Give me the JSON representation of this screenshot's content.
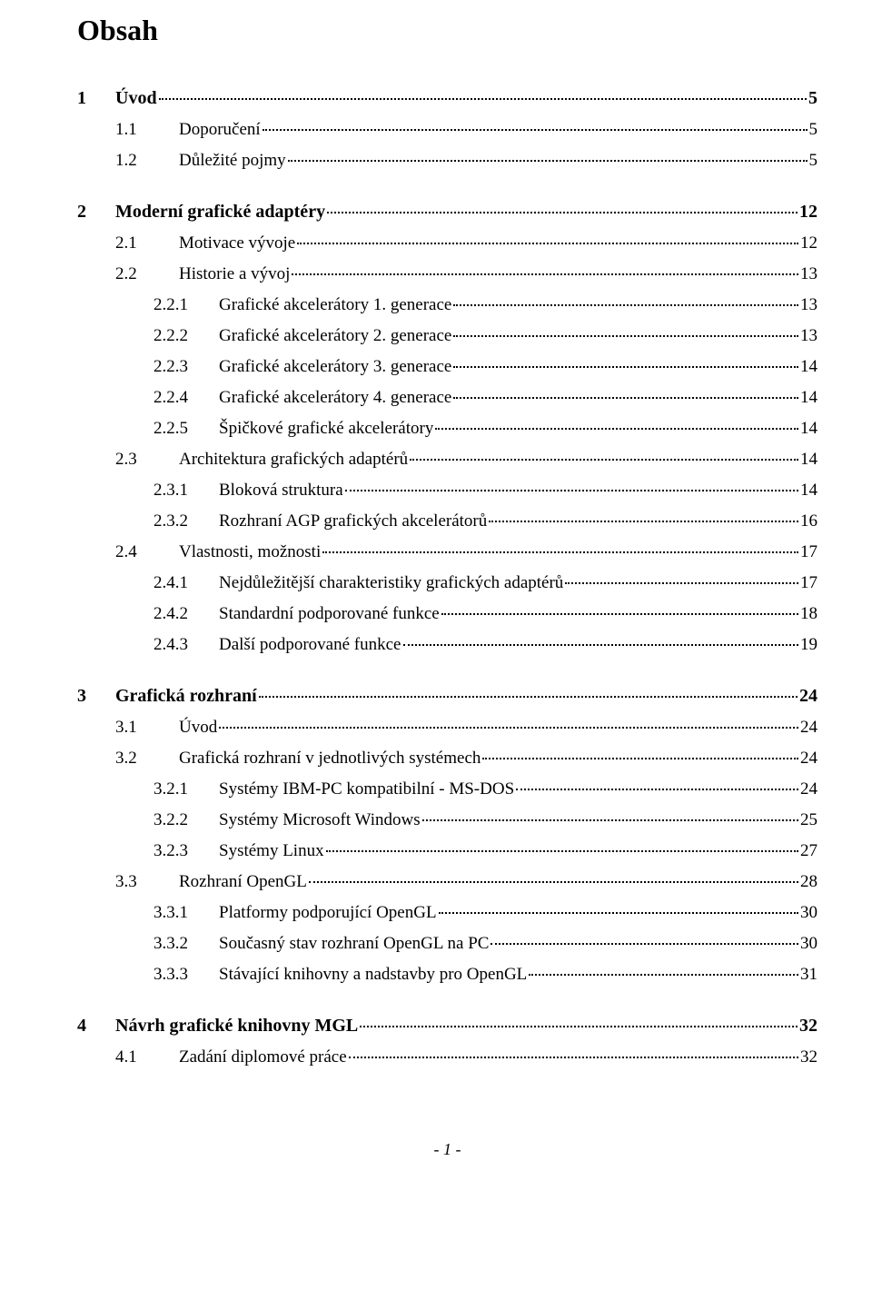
{
  "title": "Obsah",
  "footer": "- 1 -",
  "colors": {
    "text": "#000000",
    "background": "#ffffff"
  },
  "typography": {
    "family": "Times New Roman",
    "title_pt": 32,
    "l1_pt": 20,
    "l2_pt": 19,
    "l3_pt": 19
  },
  "entries": [
    {
      "level": 1,
      "num": "1",
      "label": "Úvod",
      "page": "5"
    },
    {
      "level": 2,
      "num": "1.1",
      "label": "Doporučení",
      "page": "5"
    },
    {
      "level": 2,
      "num": "1.2",
      "label": "Důležité pojmy",
      "page": "5"
    },
    {
      "level": 1,
      "num": "2",
      "label": "Moderní grafické adaptéry",
      "page": "12"
    },
    {
      "level": 2,
      "num": "2.1",
      "label": "Motivace vývoje",
      "page": "12"
    },
    {
      "level": 2,
      "num": "2.2",
      "label": "Historie a vývoj",
      "page": "13"
    },
    {
      "level": 3,
      "num": "2.2.1",
      "label": "Grafické akcelerátory 1. generace",
      "page": "13"
    },
    {
      "level": 3,
      "num": "2.2.2",
      "label": "Grafické akcelerátory 2. generace",
      "page": "13"
    },
    {
      "level": 3,
      "num": "2.2.3",
      "label": "Grafické akcelerátory 3. generace",
      "page": "14"
    },
    {
      "level": 3,
      "num": "2.2.4",
      "label": "Grafické akcelerátory 4. generace",
      "page": "14"
    },
    {
      "level": 3,
      "num": "2.2.5",
      "label": "Špičkové grafické akcelerátory",
      "page": "14"
    },
    {
      "level": 2,
      "num": "2.3",
      "label": "Architektura grafických adaptérů",
      "page": "14"
    },
    {
      "level": 3,
      "num": "2.3.1",
      "label": "Bloková struktura",
      "page": "14"
    },
    {
      "level": 3,
      "num": "2.3.2",
      "label": "Rozhraní AGP grafických akcelerátorů",
      "page": "16"
    },
    {
      "level": 2,
      "num": "2.4",
      "label": "Vlastnosti, možnosti",
      "page": "17"
    },
    {
      "level": 3,
      "num": "2.4.1",
      "label": "Nejdůležitější charakteristiky grafických adaptérů",
      "page": "17"
    },
    {
      "level": 3,
      "num": "2.4.2",
      "label": "Standardní podporované funkce",
      "page": "18"
    },
    {
      "level": 3,
      "num": "2.4.3",
      "label": "Další podporované funkce",
      "page": "19"
    },
    {
      "level": 1,
      "num": "3",
      "label": "Grafická rozhraní",
      "page": "24"
    },
    {
      "level": 2,
      "num": "3.1",
      "label": "Úvod",
      "page": "24"
    },
    {
      "level": 2,
      "num": "3.2",
      "label": "Grafická rozhraní v jednotlivých systémech",
      "page": "24"
    },
    {
      "level": 3,
      "num": "3.2.1",
      "label": "Systémy IBM-PC kompatibilní - MS-DOS",
      "page": "24"
    },
    {
      "level": 3,
      "num": "3.2.2",
      "label": "Systémy Microsoft Windows",
      "page": "25"
    },
    {
      "level": 3,
      "num": "3.2.3",
      "label": "Systémy Linux",
      "page": "27"
    },
    {
      "level": 2,
      "num": "3.3",
      "label": "Rozhraní OpenGL",
      "page": "28"
    },
    {
      "level": 3,
      "num": "3.3.1",
      "label": "Platformy podporující OpenGL",
      "page": "30"
    },
    {
      "level": 3,
      "num": "3.3.2",
      "label": "Současný stav rozhraní OpenGL na PC",
      "page": "30"
    },
    {
      "level": 3,
      "num": "3.3.3",
      "label": "Stávající knihovny a nadstavby pro OpenGL",
      "page": "31"
    },
    {
      "level": 1,
      "num": "4",
      "label": "Návrh grafické knihovny MGL",
      "page": "32"
    },
    {
      "level": 2,
      "num": "4.1",
      "label": "Zadání diplomové práce",
      "page": "32"
    }
  ]
}
